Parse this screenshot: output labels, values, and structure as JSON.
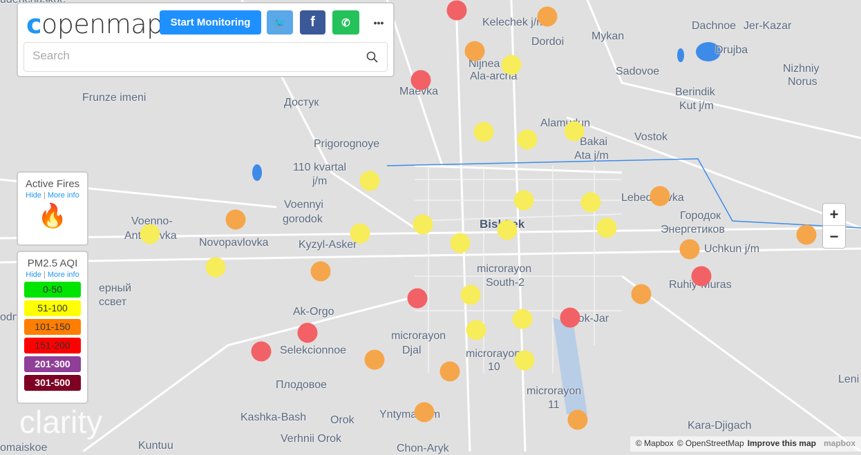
{
  "header": {
    "logo": "openmap",
    "start_monitoring": "Start Monitoring",
    "search_placeholder": "Search",
    "more": "•••"
  },
  "social": {
    "twitter": "#5aa8e8",
    "facebook": "#3b5998",
    "whatsapp": "#25c15a"
  },
  "fires": {
    "title": "Active Fires",
    "hide": "Hide",
    "sep": "|",
    "more_info": "More info",
    "icon": "fire-icon"
  },
  "aqi": {
    "title": "PM2.5 AQI",
    "hide": "Hide",
    "sep": "|",
    "more_info": "More info",
    "levels": [
      {
        "label": "0-50",
        "color": "#00e400",
        "text": "#333"
      },
      {
        "label": "51-100",
        "color": "#ffff00",
        "text": "#333"
      },
      {
        "label": "101-150",
        "color": "#ff7e00",
        "text": "#333"
      },
      {
        "label": "151-200",
        "color": "#ff0000",
        "text": "#333"
      },
      {
        "label": "201-300",
        "color": "#8f3f97",
        "text": "#fff"
      },
      {
        "label": "301-500",
        "color": "#7e0023",
        "text": "#fff"
      }
    ]
  },
  "marker_colors": {
    "red": "#f26165",
    "orange": "#f5a64a",
    "yellow": "#f7ec5a"
  },
  "markers": [
    "red",
    "red",
    "red",
    "red",
    "red",
    "red",
    "red",
    "orange",
    "orange",
    "orange",
    "orange",
    "orange",
    "orange",
    "orange",
    "orange",
    "orange",
    "orange",
    "orange",
    "orange",
    "yellow",
    "yellow",
    "yellow",
    "yellow",
    "yellow",
    "yellow",
    "yellow",
    "yellow",
    "yellow",
    "yellow",
    "yellow",
    "yellow",
    "yellow",
    "yellow",
    "yellow",
    "yellow",
    "yellow",
    "yellow"
  ],
  "places": [
    "udenchaskoe",
    "Kelechek j/m",
    "Mykan",
    "Dachnoe",
    "Jer-Kazar",
    "Dordoi",
    "Drujba",
    "Nijnea",
    "Ala-archa",
    "Sadovoe",
    "Nizhniy",
    "Norus",
    "Maevka",
    "Berindik",
    "Kut j/m",
    "Frunze imeni",
    "Достук",
    "Alamudun",
    "Bakai",
    "Ata j/m",
    "Vostok",
    "Prigorognoye",
    "110 kvartal",
    "j/m",
    "Lebedinovka",
    "Городок",
    "Энергетиков",
    "Bishkek",
    "Voennyi",
    "gorodok",
    "Voenno-",
    "Antonovka",
    "Novopavlovka",
    "Kyzyl-Asker",
    "Uchkun j/m",
    "microrayon",
    "South-2",
    "Ruhiy-Muras",
    "ерный",
    "ссвет",
    "Ak-Orgo",
    "Kok-Jar",
    "odn",
    "microrayon",
    "Djal",
    "Selekcionnoe",
    "microrayon",
    "10",
    "Плодовое",
    "Leni",
    "microrayon",
    "11",
    "Kashka-Bash",
    "Orok",
    "Yntymak j/m",
    "Kara-Djigach",
    "Verhnii Orok",
    "Kuntuu",
    "omaiskoe",
    "Chon-Aryk"
  ],
  "zoom": {
    "in": "+",
    "out": "−"
  },
  "watermark": "clarity",
  "attribution": {
    "mapbox": "© Mapbox",
    "osm": "© OpenStreetMap",
    "improve": "Improve this map",
    "logo": "mapbox"
  }
}
